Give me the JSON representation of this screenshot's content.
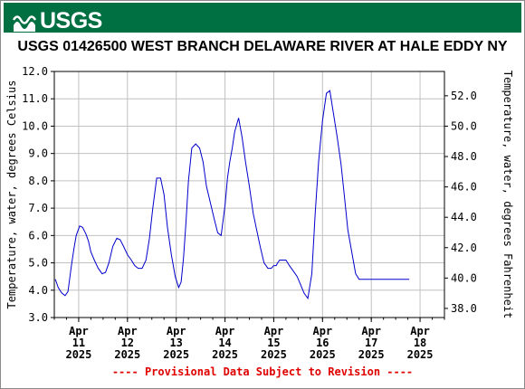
{
  "banner": {
    "logo_text": "USGS",
    "color": "#006f41"
  },
  "title": "USGS 01426500 WEST BRANCH DELAWARE RIVER AT HALE EDDY NY",
  "provisional_note": "---- Provisional Data Subject to Revision ----",
  "chart_data": {
    "type": "line",
    "ylabel": "Temperature, water, degrees Celsius",
    "y2label": "Temperature, water, degrees Fahrenheit",
    "ylim": [
      3.0,
      12.0
    ],
    "y2lim": [
      37.4,
      53.6
    ],
    "yticks": [
      "3.0",
      "4.0",
      "5.0",
      "6.0",
      "7.0",
      "8.0",
      "9.0",
      "10.0",
      "11.0",
      "12.0"
    ],
    "y2ticks": [
      "38.0",
      "40.0",
      "42.0",
      "44.0",
      "46.0",
      "48.0",
      "50.0",
      "52.0"
    ],
    "xlim_days": [
      10.5,
      18.5
    ],
    "xticks": [
      {
        "month": "Apr",
        "day": "11",
        "year": "2025",
        "pos": 11
      },
      {
        "month": "Apr",
        "day": "12",
        "year": "2025",
        "pos": 12
      },
      {
        "month": "Apr",
        "day": "13",
        "year": "2025",
        "pos": 13
      },
      {
        "month": "Apr",
        "day": "14",
        "year": "2025",
        "pos": 14
      },
      {
        "month": "Apr",
        "day": "15",
        "year": "2025",
        "pos": 15
      },
      {
        "month": "Apr",
        "day": "16",
        "year": "2025",
        "pos": 16
      },
      {
        "month": "Apr",
        "day": "17",
        "year": "2025",
        "pos": 17
      },
      {
        "month": "Apr",
        "day": "18",
        "year": "2025",
        "pos": 18
      }
    ],
    "grid": true,
    "series": [
      {
        "color": "#0000cc",
        "x": [
          10.52,
          10.58,
          10.65,
          10.72,
          10.78,
          10.85,
          10.9,
          10.95,
          11.02,
          11.08,
          11.15,
          11.2,
          11.25,
          11.32,
          11.4,
          11.48,
          11.55,
          11.62,
          11.7,
          11.78,
          11.85,
          11.92,
          12.0,
          12.08,
          12.15,
          12.22,
          12.3,
          12.38,
          12.45,
          12.52,
          12.6,
          12.68,
          12.75,
          12.82,
          12.9,
          12.98,
          13.05,
          13.1,
          13.15,
          13.2,
          13.25,
          13.32,
          13.4,
          13.48,
          13.55,
          13.62,
          13.7,
          13.78,
          13.85,
          13.92,
          14.0,
          14.05,
          14.1,
          14.15,
          14.2,
          14.28,
          14.35,
          14.42,
          14.5,
          14.58,
          14.65,
          14.72,
          14.8,
          14.88,
          14.95,
          15.0,
          15.05,
          15.08,
          15.12,
          15.18,
          15.25,
          15.32,
          15.4,
          15.48,
          15.55,
          15.62,
          15.7,
          15.78,
          15.85,
          15.92,
          16.0,
          16.08,
          16.15,
          16.22,
          16.3,
          16.38,
          16.45,
          16.52,
          16.6,
          16.68,
          16.75,
          16.82,
          16.9,
          16.95,
          17.0,
          17.05,
          17.1,
          17.15,
          17.2,
          17.25,
          17.3,
          17.35,
          17.42,
          17.5,
          17.58,
          17.65,
          17.72,
          17.78
        ],
        "y": [
          4.4,
          4.1,
          3.9,
          3.8,
          3.95,
          4.9,
          5.5,
          6.0,
          6.35,
          6.3,
          6.05,
          5.8,
          5.4,
          5.1,
          4.8,
          4.6,
          4.65,
          5.0,
          5.6,
          5.9,
          5.85,
          5.6,
          5.3,
          5.1,
          4.9,
          4.8,
          4.8,
          5.1,
          5.9,
          7.0,
          8.1,
          8.1,
          7.5,
          6.3,
          5.3,
          4.5,
          4.1,
          4.3,
          5.2,
          6.5,
          8.0,
          9.2,
          9.35,
          9.2,
          8.7,
          7.8,
          7.2,
          6.6,
          6.1,
          6.0,
          7.1,
          8.1,
          8.7,
          9.2,
          9.8,
          10.3,
          9.6,
          8.7,
          7.8,
          6.8,
          6.2,
          5.6,
          5.0,
          4.8,
          4.8,
          4.9,
          4.9,
          5.0,
          5.1,
          5.1,
          5.1,
          4.9,
          4.7,
          4.5,
          4.2,
          3.9,
          3.7,
          4.6,
          6.8,
          8.7,
          10.2,
          11.2,
          11.3,
          10.5,
          9.6,
          8.6,
          7.4,
          6.2,
          5.4,
          4.6,
          4.4,
          4.4,
          4.4,
          4.4,
          4.4,
          4.4,
          4.4,
          4.4,
          4.4,
          4.4,
          4.4,
          4.4,
          4.4,
          4.4,
          4.4,
          4.4,
          4.4,
          4.4
        ]
      }
    ]
  }
}
